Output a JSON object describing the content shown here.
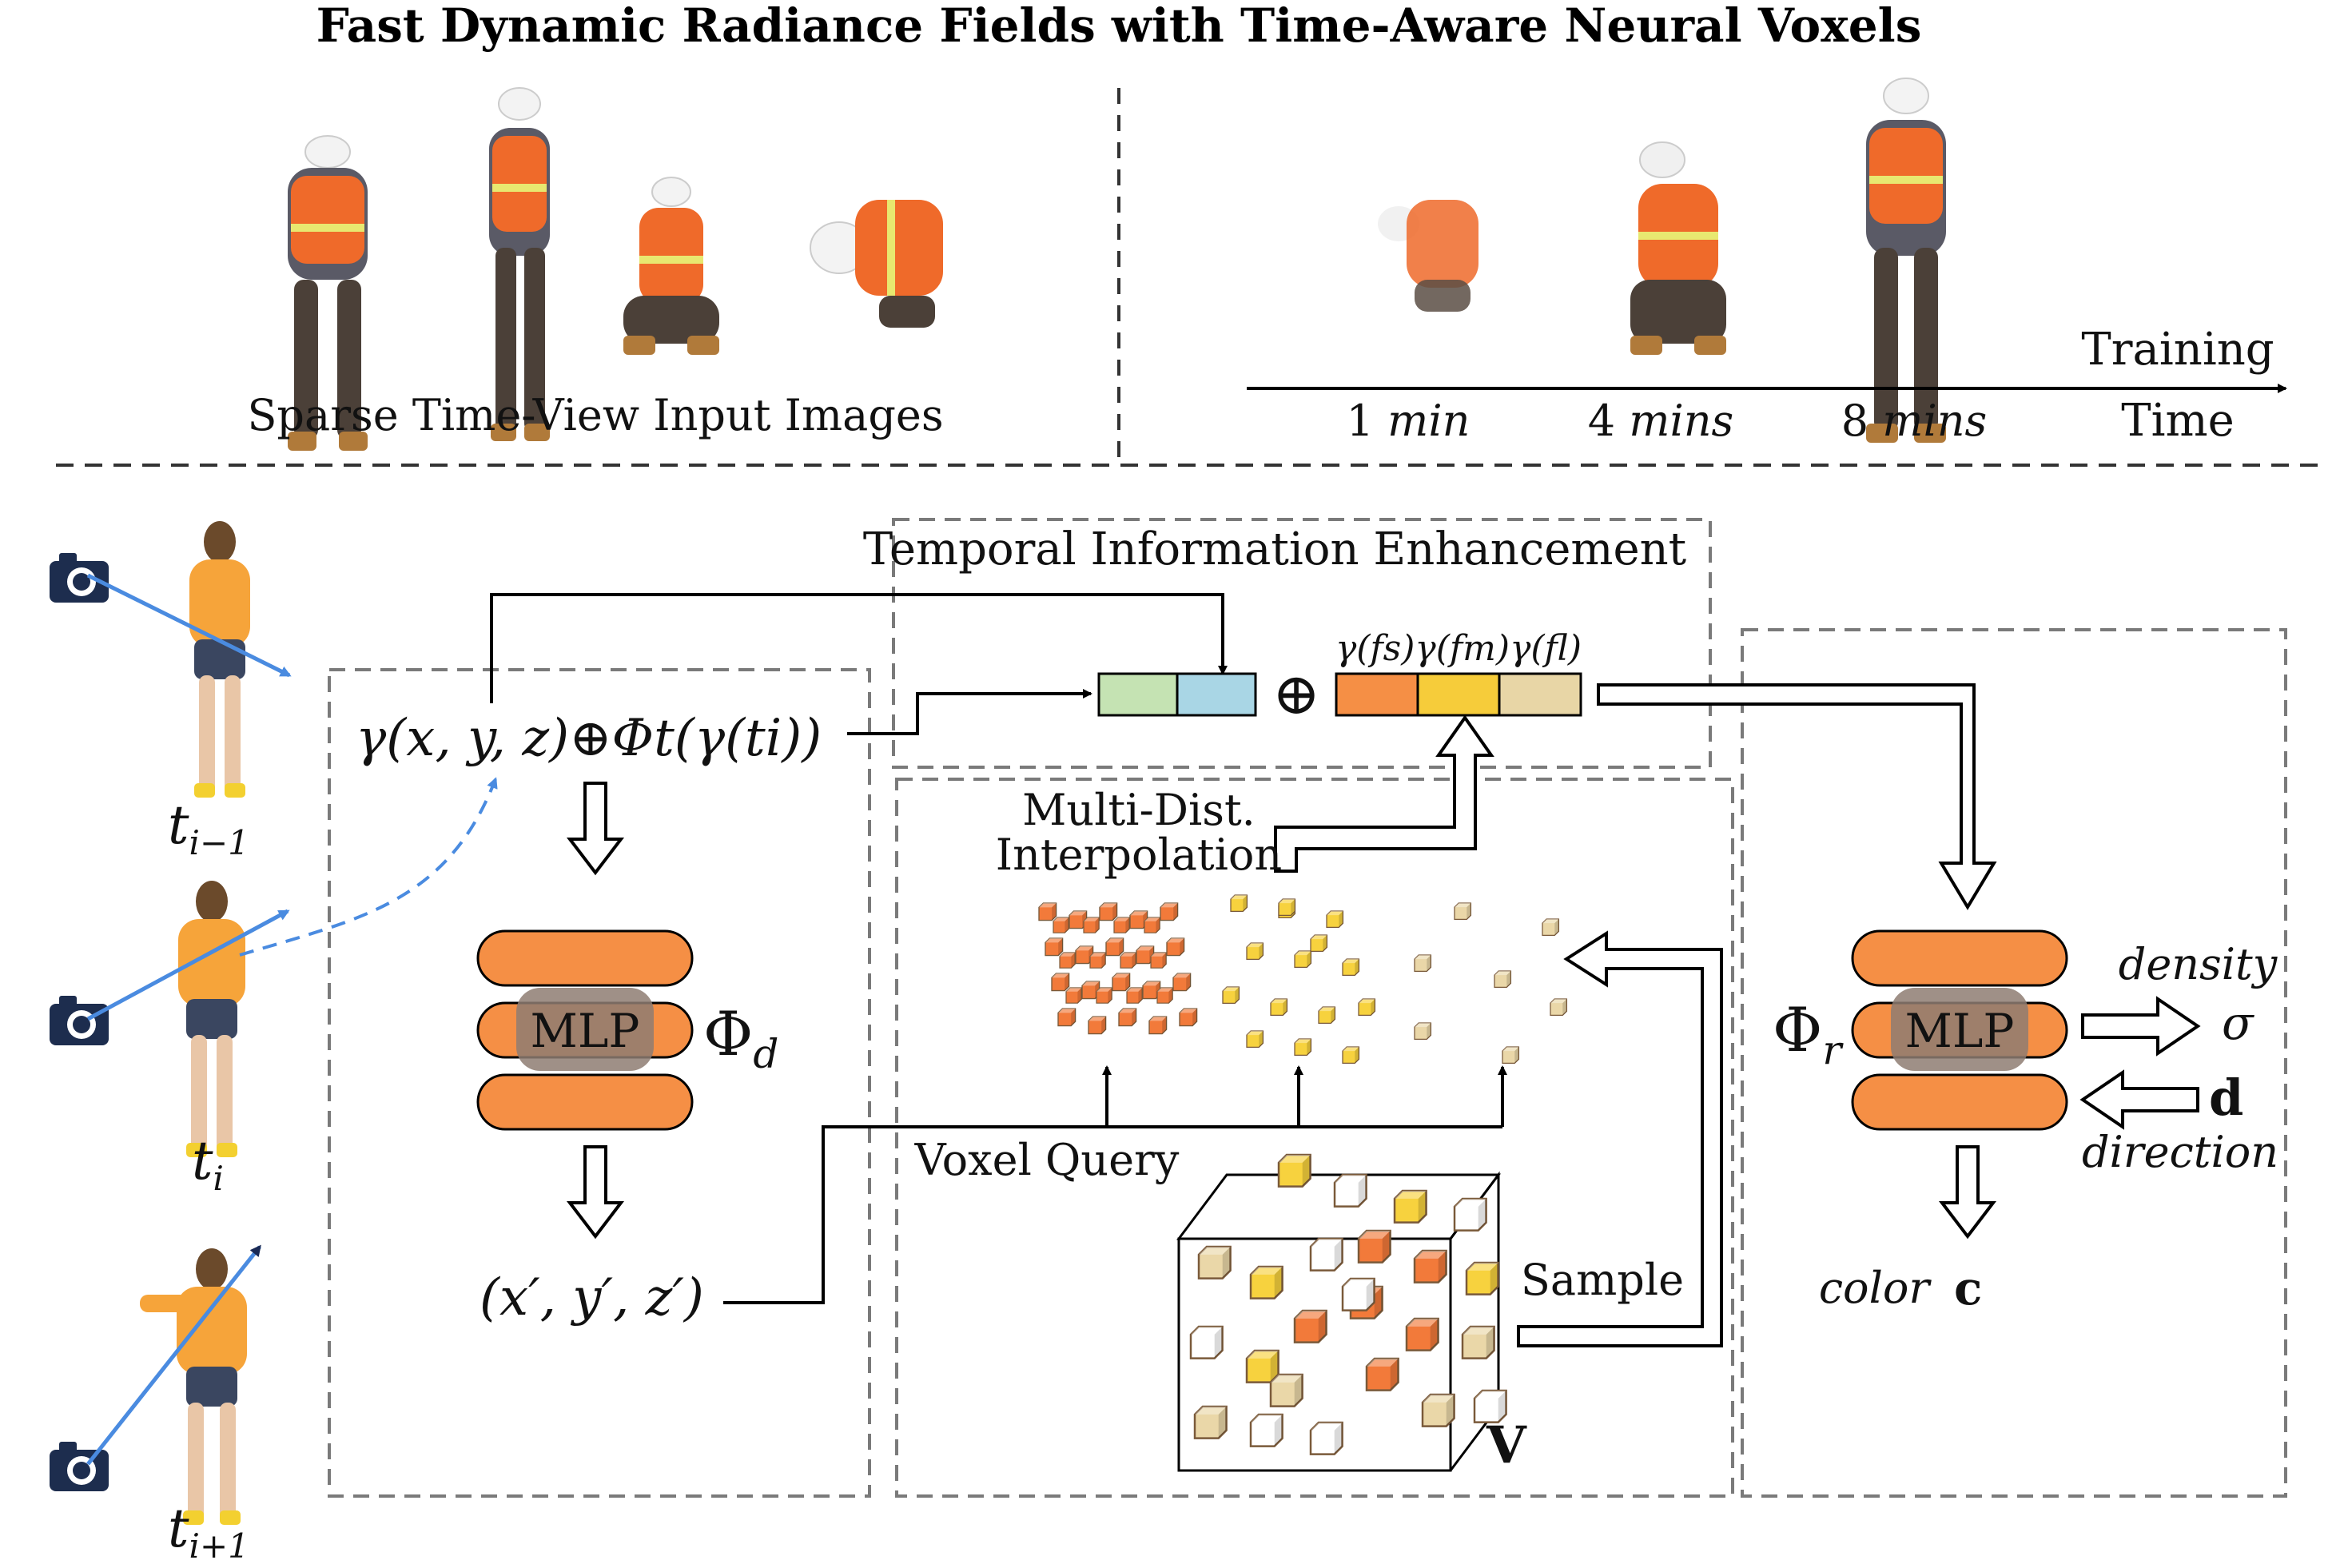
{
  "title": "Fast Dynamic Radiance Fields with Time-Aware Neural Voxels",
  "top_left": {
    "caption": "Sparse Time-View Input Images",
    "figure_count": 4
  },
  "top_right": {
    "axis_label_top": "Training",
    "axis_label_bottom": "Time",
    "ticks": [
      {
        "num": "1",
        "unit": "min"
      },
      {
        "num": "4",
        "unit": "mins"
      },
      {
        "num": "8",
        "unit": "mins"
      }
    ]
  },
  "time_labels": [
    {
      "base": "t",
      "sub": "i−1"
    },
    {
      "base": "t",
      "sub": "i"
    },
    {
      "base": "t",
      "sub": "i+1"
    }
  ],
  "deform": {
    "input_expr": "γ(x, y, z)⊕Φt(γ(ti))",
    "mlp_label": "MLP",
    "phi_label": "Φ",
    "phi_sub": "d",
    "output_expr": "(x′, y′, z′)"
  },
  "temporal": {
    "box_label": "Temporal Information Enhancement",
    "oplus": "⊕",
    "feature_label": "γ(fs)γ(fm)γ(fl)",
    "colors": {
      "green": "#c5e3b3",
      "blue": "#a9d6e5",
      "orange": "#f58f45",
      "yellow": "#f6cc3a",
      "tan": "#e8d6a6"
    }
  },
  "voxel": {
    "interp_line1": "Multi-Dist.",
    "interp_line2": "Interpolation",
    "query_label": "Voxel Query",
    "sample_label": "Sample",
    "grid_label": "V"
  },
  "render": {
    "phi_label": "Φ",
    "phi_sub": "r",
    "mlp_label": "MLP",
    "density_label": "density",
    "sigma": "σ",
    "direction_symbol": "d",
    "direction_label": "direction",
    "color_label": "color",
    "color_symbol": "c"
  },
  "colors": {
    "mlp_orange": "#f58f45",
    "mlp_core": "#8e7c72",
    "voxel_orange": "#f27a3a",
    "voxel_yellow": "#f7d23e",
    "voxel_tan": "#ead7a8",
    "ray_blue": "#4a8be0",
    "dash_gray": "#7a7a7a"
  }
}
